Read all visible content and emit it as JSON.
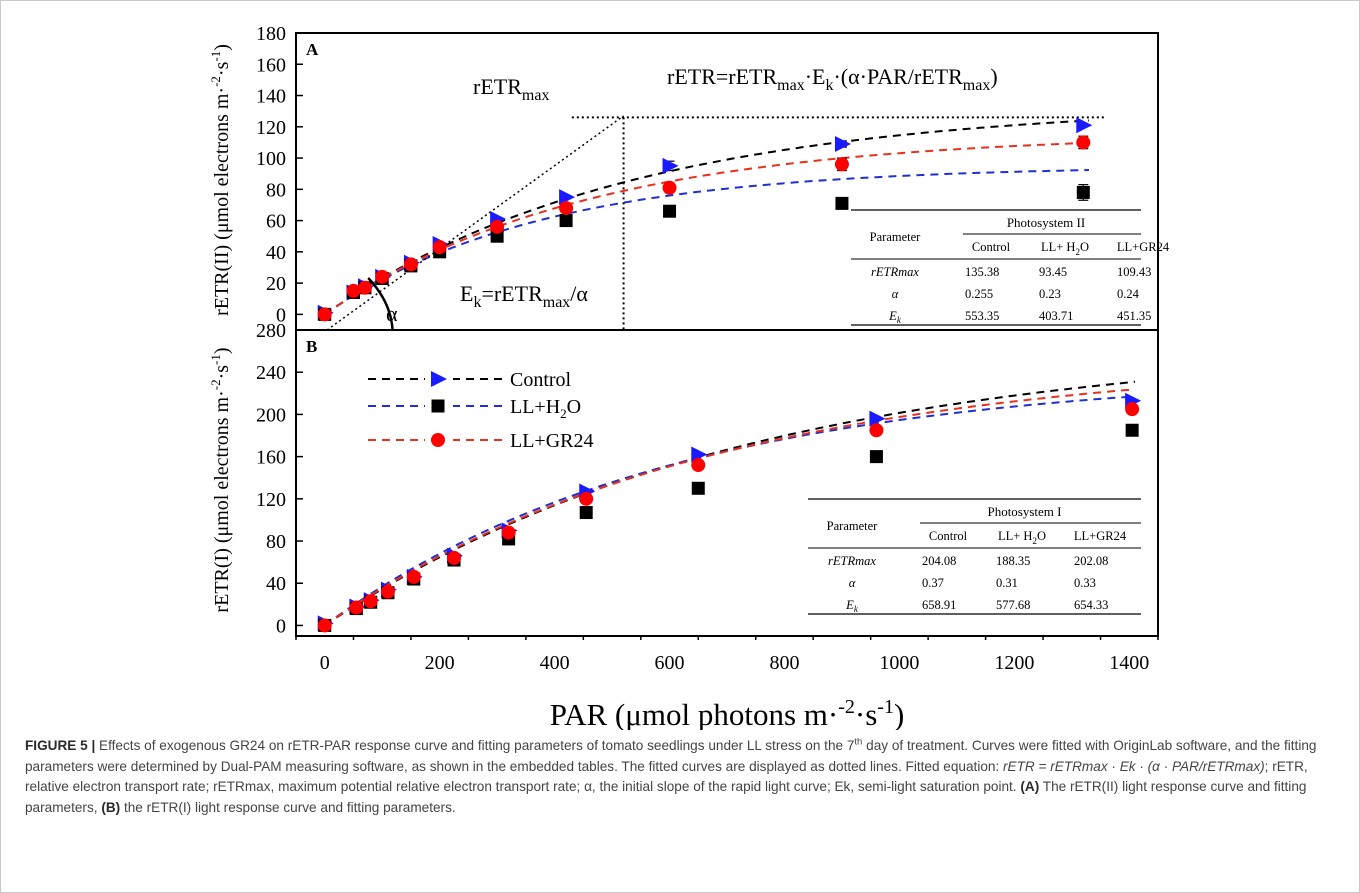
{
  "chart_data": [
    {
      "panel": "A",
      "type": "scatter",
      "ylabel": "rETR(II) (μmol electrons m-2·s-1)",
      "xlim": [
        -50,
        1450
      ],
      "ylim": [
        -10,
        180
      ],
      "yticks": [
        0,
        20,
        40,
        60,
        80,
        100,
        120,
        140,
        160,
        180
      ],
      "series": [
        {
          "name": "Control",
          "color": "#1a1aff",
          "marker": "triangle-right",
          "line": "#000000",
          "x": [
            0,
            50,
            70,
            100,
            150,
            200,
            300,
            420,
            600,
            900,
            1320
          ],
          "y": [
            1,
            14,
            18,
            24,
            33,
            45,
            61,
            75,
            95,
            109,
            121
          ],
          "err": [
            0,
            0,
            0,
            0,
            0,
            0,
            0,
            0,
            3,
            2,
            0
          ]
        },
        {
          "name": "LL+H2O",
          "color": "#000000",
          "marker": "square",
          "line": "#1f2fd0",
          "x": [
            0,
            50,
            70,
            100,
            150,
            200,
            300,
            420,
            600,
            900,
            1320
          ],
          "y": [
            0,
            14,
            17,
            23,
            31,
            40,
            50,
            60,
            66,
            71,
            78
          ],
          "err": [
            0,
            0,
            0,
            0,
            0,
            0,
            0,
            0,
            0,
            0,
            5
          ]
        },
        {
          "name": "LL+GR24",
          "color": "#ff0000",
          "marker": "circle",
          "line": "#e8301f",
          "x": [
            0,
            50,
            70,
            100,
            150,
            200,
            300,
            420,
            600,
            900,
            1320
          ],
          "y": [
            0,
            15,
            17,
            24,
            32,
            43,
            56,
            68,
            81,
            96,
            110
          ],
          "err": [
            0,
            0,
            0,
            0,
            0,
            0,
            0,
            0,
            0,
            4,
            4
          ]
        }
      ],
      "annotations": {
        "rmax": "rETR",
        "rmax_sub": "max",
        "ek": "E",
        "ek_sub": "k",
        "ek_rest": "=rETR",
        "ek_sub2": "max",
        "ek_tail": "/α",
        "alpha": "α",
        "eq_a": "rETR=rETR",
        "eq_sub1": "max",
        "eq_b": "·E",
        "eq_sub2": "k",
        "eq_c": "·(α·PAR/rETR",
        "eq_sub3": "max",
        "eq_d": ")"
      },
      "table": {
        "title": "Photosystem II",
        "header": [
          "Parameter",
          "Control",
          "LL+ H2O",
          "LL+GR24"
        ],
        "rows": [
          [
            "rETRmax",
            "135.38",
            "93.45",
            "109.43"
          ],
          [
            "α",
            "0.255",
            "0.23",
            "0.24"
          ],
          [
            "Ek",
            "553.35",
            "403.71",
            "451.35"
          ]
        ]
      }
    },
    {
      "panel": "B",
      "type": "scatter",
      "ylabel": "rETR(I) (μmol electrons m-2·s-1)",
      "xlabel": "PAR (μmol photons m-2·s-1)",
      "xlim": [
        -50,
        1450
      ],
      "xticks": [
        0,
        200,
        400,
        600,
        800,
        1000,
        1200,
        1400
      ],
      "ylim": [
        -10,
        280
      ],
      "yticks": [
        0,
        40,
        80,
        120,
        160,
        200,
        240,
        280
      ],
      "legend": [
        "Control",
        "LL+H2O",
        "LL+GR24"
      ],
      "series": [
        {
          "name": "Control",
          "color": "#1a1aff",
          "marker": "triangle-right",
          "line": "#000000",
          "x": [
            0,
            55,
            80,
            110,
            155,
            225,
            320,
            455,
            650,
            960,
            1405
          ],
          "y": [
            2,
            18,
            24,
            34,
            46,
            66,
            90,
            127,
            162,
            196,
            213
          ]
        },
        {
          "name": "LL+H2O",
          "color": "#000000",
          "marker": "square",
          "line": "#1f2fd0",
          "x": [
            0,
            55,
            80,
            110,
            155,
            225,
            320,
            455,
            650,
            960,
            1405
          ],
          "y": [
            0,
            16,
            22,
            31,
            44,
            62,
            82,
            107,
            130,
            160,
            185
          ]
        },
        {
          "name": "LL+GR24",
          "color": "#ff0000",
          "marker": "circle",
          "line": "#e8301f",
          "x": [
            0,
            55,
            80,
            110,
            155,
            225,
            320,
            455,
            650,
            960,
            1405
          ],
          "y": [
            0,
            17,
            23,
            32,
            46,
            64,
            88,
            120,
            152,
            185,
            205
          ]
        }
      ],
      "table": {
        "title": "Photosystem I",
        "header": [
          "Parameter",
          "Control",
          "LL+ H2O",
          "LL+GR24"
        ],
        "rows": [
          [
            "rETRmax",
            "204.08",
            "188.35",
            "202.08"
          ],
          [
            "α",
            "0.37",
            "0.31",
            "0.33"
          ],
          [
            "Ek",
            "658.91",
            "577.68",
            "654.33"
          ]
        ]
      }
    }
  ],
  "caption": {
    "lead": "FIGURE 5 |",
    "text1": " Effects of exogenous GR24 on rETR-PAR response curve and fitting parameters of tomato seedlings under LL stress on the 7",
    "sup_th": "th",
    "text2": " day of treatment. Curves were fitted with OriginLab software, and the fitting parameters were determined by Dual-PAM measuring software, as shown in the embedded tables. The fitted curves are displayed as dotted lines. Fitted equation: ",
    "eq": "rETR = rETRmax · Ek · (α · PAR/rETRmax)",
    "text3": "; rETR, relative electron transport rate; rETRmax, maximum potential relative electron transport rate; α, the initial slope of the rapid light curve; Ek, semi-light saturation point. ",
    "ba": "(A)",
    "text4": " The rETR(II) light response curve and fitting parameters, ",
    "bb": "(B)",
    "text5": " the rETR(I) light response curve and fitting parameters."
  }
}
